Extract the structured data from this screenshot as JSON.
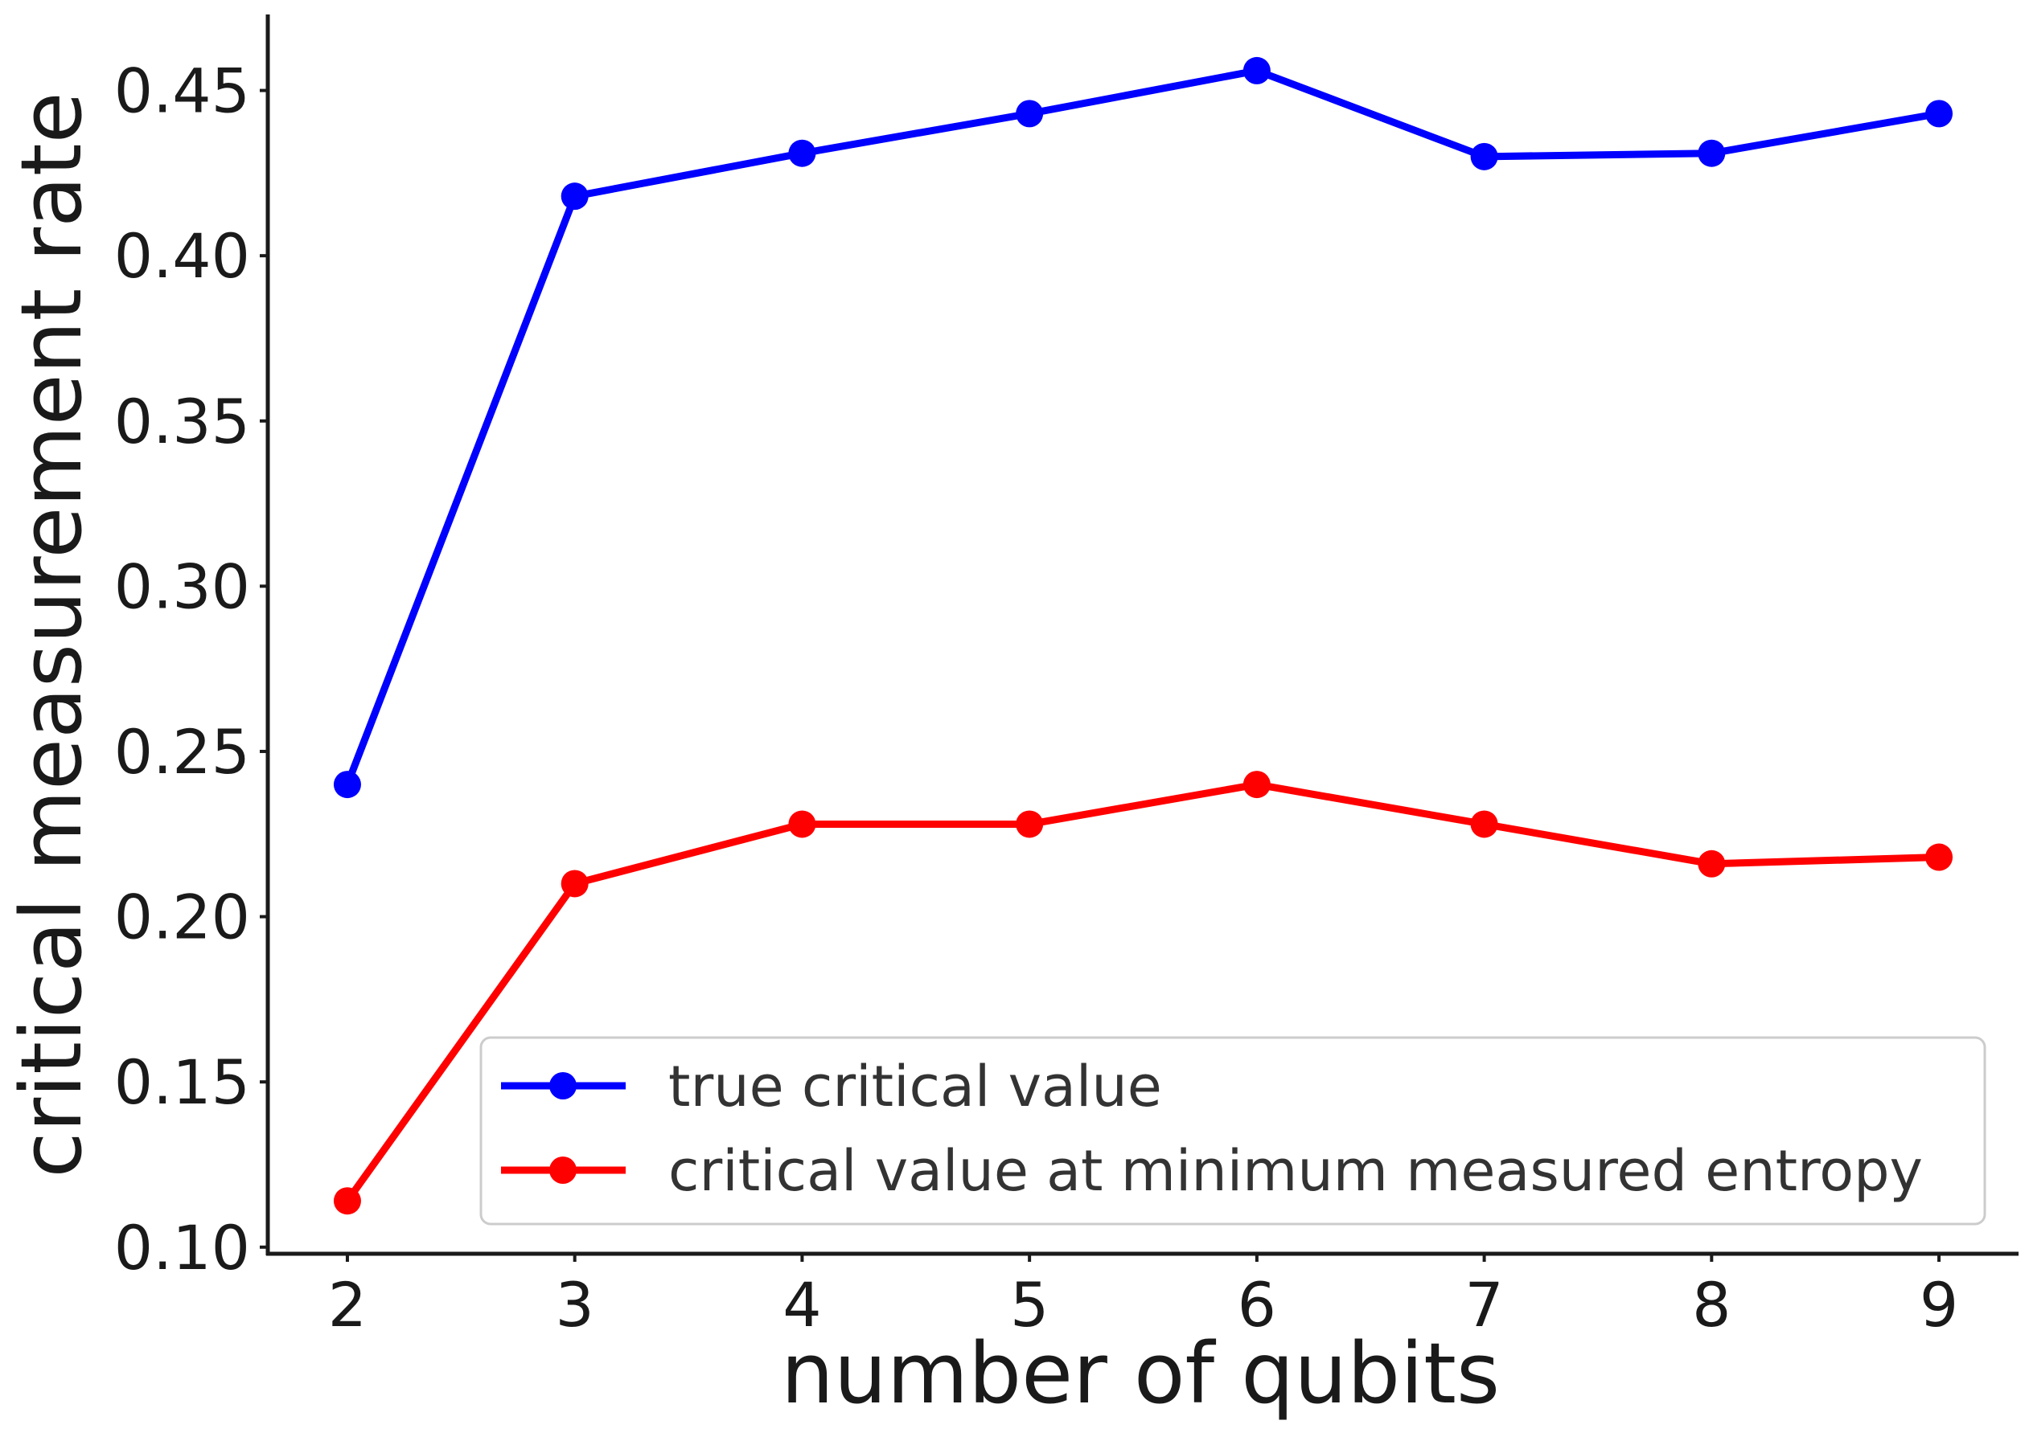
{
  "chart_data": {
    "type": "line",
    "x": [
      2,
      3,
      4,
      5,
      6,
      7,
      8,
      9
    ],
    "xlabel": "number of qubits",
    "ylabel": "critical measurement rate",
    "xlim": [
      1.65,
      9.35
    ],
    "ylim": [
      0.098,
      0.473
    ],
    "xticks": [
      2,
      3,
      4,
      5,
      6,
      7,
      8,
      9
    ],
    "xtick_labels": [
      "2",
      "3",
      "4",
      "5",
      "6",
      "7",
      "8",
      "9"
    ],
    "yticks": [
      0.1,
      0.15,
      0.2,
      0.25,
      0.3,
      0.35,
      0.4,
      0.45
    ],
    "ytick_labels": [
      "0.10",
      "0.15",
      "0.20",
      "0.25",
      "0.30",
      "0.35",
      "0.40",
      "0.45"
    ],
    "grid": false,
    "legend_position": "lower-right",
    "series": [
      {
        "name": "true critical value",
        "color": "#0000ff",
        "marker": "circle",
        "values": [
          0.24,
          0.418,
          0.431,
          0.443,
          0.456,
          0.43,
          0.431,
          0.443
        ]
      },
      {
        "name": "critical value at minimum measured entropy",
        "color": "#ff0000",
        "marker": "circle",
        "values": [
          0.114,
          0.21,
          0.228,
          0.228,
          0.24,
          0.228,
          0.216,
          0.218
        ]
      }
    ]
  }
}
